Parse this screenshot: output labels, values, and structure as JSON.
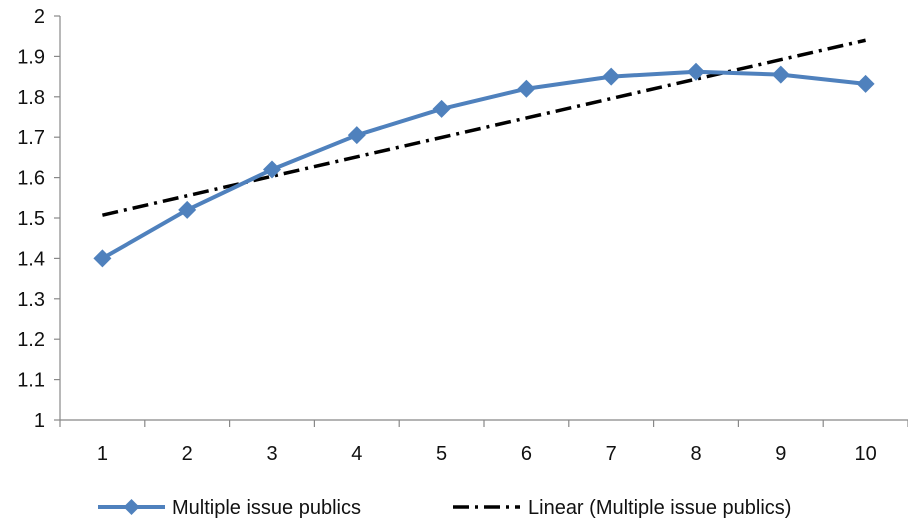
{
  "chart_data": {
    "type": "line",
    "x": [
      1,
      2,
      3,
      4,
      5,
      6,
      7,
      8,
      9,
      10
    ],
    "series": [
      {
        "name": "Multiple issue publics",
        "values": [
          1.4,
          1.52,
          1.62,
          1.705,
          1.77,
          1.82,
          1.85,
          1.862,
          1.855,
          1.832
        ],
        "color": "#4f81bd",
        "marker": "diamond"
      },
      {
        "name": "Linear (Multiple issue publics)",
        "trendline": "linear",
        "start": 1.507,
        "end": 1.94,
        "color": "#000000",
        "style": "dash-dot"
      }
    ],
    "x_tick_labels": [
      "1",
      "2",
      "3",
      "4",
      "5",
      "6",
      "7",
      "8",
      "9",
      "10"
    ],
    "y_tick_labels": [
      "1",
      "1.1",
      "1.2",
      "1.3",
      "1.4",
      "1.5",
      "1.6",
      "1.7",
      "1.8",
      "1.9",
      "2"
    ],
    "ylim": [
      1,
      2
    ],
    "grid": false,
    "legend_position": "bottom",
    "title": "",
    "xlabel": "",
    "ylabel": ""
  }
}
